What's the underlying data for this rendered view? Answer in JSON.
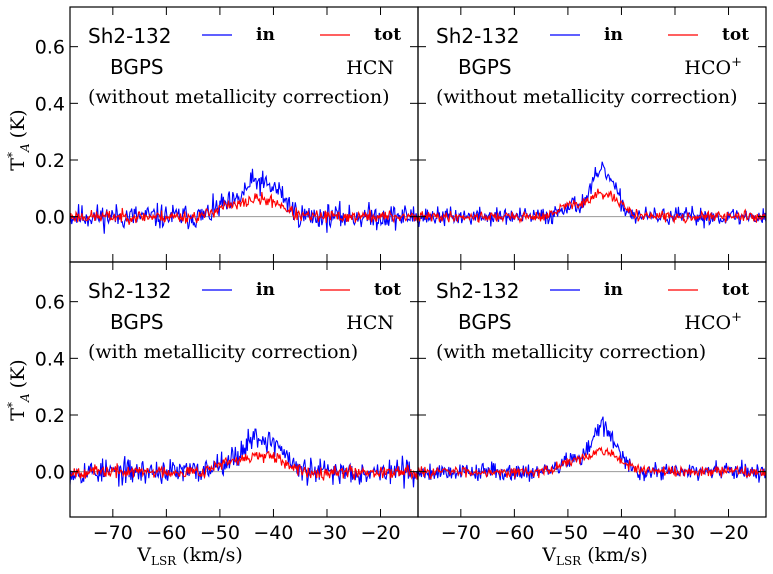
{
  "figure": {
    "ylabel_main": "T",
    "ylabel_sup": "*",
    "ylabel_sub": "A",
    "ylabel_unit": "(K)",
    "xlabel_main": "V",
    "xlabel_sub": "LSR",
    "xlabel_unit": "(km/s)"
  },
  "chart_data": [
    {
      "type": "line",
      "panel": "top-left",
      "source": "Sh2-132",
      "survey": "BGPS",
      "molecule": "HCN",
      "molecule_sup": "",
      "note": "(without metallicity correction)",
      "legend": [
        {
          "name": "in",
          "color": "#0000ff"
        },
        {
          "name": "tot",
          "color": "#ff0000"
        }
      ],
      "xlim": [
        -78,
        -13
      ],
      "ylim": [
        -0.16,
        0.74
      ],
      "xticks": [
        -70,
        -60,
        -50,
        -40,
        -30,
        -20
      ],
      "xtick_labels": [
        "−70",
        "−60",
        "−50",
        "−40",
        "−30",
        "−20"
      ],
      "yticks": [
        0.0,
        0.2,
        0.4,
        0.6
      ],
      "ytick_labels": [
        "0.0",
        "0.2",
        "0.4",
        "0.6"
      ],
      "show_xticklabels": false,
      "show_yticklabels": true,
      "series": [
        {
          "name": "in",
          "color": "#0000ff",
          "noise": 0.022,
          "seed": 11,
          "components": [
            {
              "amp": 0.035,
              "center": -49.5,
              "sigma": 1.6
            },
            {
              "amp": 0.12,
              "center": -43.5,
              "sigma": 2.4
            },
            {
              "amp": 0.07,
              "center": -39.0,
              "sigma": 1.8
            }
          ]
        },
        {
          "name": "tot",
          "color": "#ff0000",
          "noise": 0.011,
          "seed": 23,
          "components": [
            {
              "amp": 0.03,
              "center": -49.5,
              "sigma": 1.8
            },
            {
              "amp": 0.06,
              "center": -43.5,
              "sigma": 2.8
            },
            {
              "amp": 0.03,
              "center": -39.0,
              "sigma": 1.8
            }
          ]
        }
      ]
    },
    {
      "type": "line",
      "panel": "top-right",
      "source": "Sh2-132",
      "survey": "BGPS",
      "molecule": "HCO",
      "molecule_sup": "+",
      "note": "(without metallicity correction)",
      "legend": [
        {
          "name": "in",
          "color": "#0000ff"
        },
        {
          "name": "tot",
          "color": "#ff0000"
        }
      ],
      "xlim": [
        -78,
        -13
      ],
      "ylim": [
        -0.16,
        0.74
      ],
      "xticks": [
        -70,
        -60,
        -50,
        -40,
        -30,
        -20
      ],
      "xtick_labels": [
        "−70",
        "−60",
        "−50",
        "−40",
        "−30",
        "−20"
      ],
      "yticks": [
        0.0,
        0.2,
        0.4,
        0.6
      ],
      "ytick_labels": [
        "0.0",
        "0.2",
        "0.4",
        "0.6"
      ],
      "show_xticklabels": false,
      "show_yticklabels": false,
      "series": [
        {
          "name": "in",
          "color": "#0000ff",
          "noise": 0.016,
          "seed": 37,
          "components": [
            {
              "amp": 0.04,
              "center": -50.0,
              "sigma": 1.5
            },
            {
              "amp": 0.16,
              "center": -43.5,
              "sigma": 2.3
            }
          ]
        },
        {
          "name": "tot",
          "color": "#ff0000",
          "noise": 0.009,
          "seed": 41,
          "components": [
            {
              "amp": 0.035,
              "center": -50.0,
              "sigma": 1.7
            },
            {
              "amp": 0.08,
              "center": -43.5,
              "sigma": 3.0
            }
          ]
        }
      ]
    },
    {
      "type": "line",
      "panel": "bottom-left",
      "source": "Sh2-132",
      "survey": "BGPS",
      "molecule": "HCN",
      "molecule_sup": "",
      "note": "(with metallicity correction)",
      "legend": [
        {
          "name": "in",
          "color": "#0000ff"
        },
        {
          "name": "tot",
          "color": "#ff0000"
        }
      ],
      "xlim": [
        -78,
        -13
      ],
      "ylim": [
        -0.16,
        0.74
      ],
      "xticks": [
        -70,
        -60,
        -50,
        -40,
        -30,
        -20
      ],
      "xtick_labels": [
        "−70",
        "−60",
        "−50",
        "−40",
        "−30",
        "−20"
      ],
      "yticks": [
        0.0,
        0.2,
        0.4,
        0.6
      ],
      "ytick_labels": [
        "0.0",
        "0.2",
        "0.4",
        "0.6"
      ],
      "show_xticklabels": true,
      "show_yticklabels": true,
      "series": [
        {
          "name": "in",
          "color": "#0000ff",
          "noise": 0.022,
          "seed": 53,
          "components": [
            {
              "amp": 0.035,
              "center": -49.5,
              "sigma": 1.6
            },
            {
              "amp": 0.12,
              "center": -43.5,
              "sigma": 2.4
            },
            {
              "amp": 0.07,
              "center": -39.0,
              "sigma": 1.8
            }
          ]
        },
        {
          "name": "tot",
          "color": "#ff0000",
          "noise": 0.011,
          "seed": 67,
          "components": [
            {
              "amp": 0.025,
              "center": -49.5,
              "sigma": 1.8
            },
            {
              "amp": 0.055,
              "center": -43.5,
              "sigma": 2.8
            },
            {
              "amp": 0.025,
              "center": -39.0,
              "sigma": 1.8
            }
          ]
        }
      ]
    },
    {
      "type": "line",
      "panel": "bottom-right",
      "source": "Sh2-132",
      "survey": "BGPS",
      "molecule": "HCO",
      "molecule_sup": "+",
      "note": "(with metallicity correction)",
      "legend": [
        {
          "name": "in",
          "color": "#0000ff"
        },
        {
          "name": "tot",
          "color": "#ff0000"
        }
      ],
      "xlim": [
        -78,
        -13
      ],
      "ylim": [
        -0.16,
        0.74
      ],
      "xticks": [
        -70,
        -60,
        -50,
        -40,
        -30,
        -20
      ],
      "xtick_labels": [
        "−70",
        "−60",
        "−50",
        "−40",
        "−30",
        "−20"
      ],
      "yticks": [
        0.0,
        0.2,
        0.4,
        0.6
      ],
      "ytick_labels": [
        "0.0",
        "0.2",
        "0.4",
        "0.6"
      ],
      "show_xticklabels": true,
      "show_yticklabels": false,
      "series": [
        {
          "name": "in",
          "color": "#0000ff",
          "noise": 0.016,
          "seed": 79,
          "components": [
            {
              "amp": 0.04,
              "center": -50.0,
              "sigma": 1.5
            },
            {
              "amp": 0.16,
              "center": -43.5,
              "sigma": 2.3
            }
          ]
        },
        {
          "name": "tot",
          "color": "#ff0000",
          "noise": 0.009,
          "seed": 83,
          "components": [
            {
              "amp": 0.03,
              "center": -50.0,
              "sigma": 1.7
            },
            {
              "amp": 0.075,
              "center": -43.5,
              "sigma": 3.0
            }
          ]
        }
      ]
    }
  ]
}
